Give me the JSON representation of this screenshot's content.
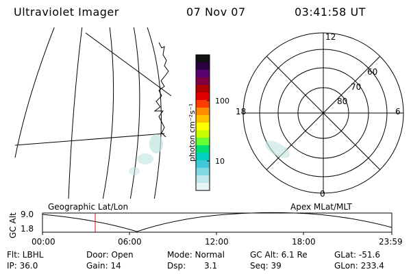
{
  "header": {
    "instrument": "Ultraviolet Imager",
    "date": "07 Nov 07",
    "time": "03:41:58 UT"
  },
  "colorbar": {
    "unit_label": "photon cm⁻²s⁻¹",
    "tick_labels": [
      "100",
      "10"
    ],
    "colors": [
      "#111111",
      "#2a0040",
      "#5a0070",
      "#800040",
      "#b00000",
      "#e00000",
      "#ff3b00",
      "#ff8c00",
      "#ffc000",
      "#ffff00",
      "#c8ff00",
      "#66ff33",
      "#00e070",
      "#00d0c0",
      "#40c8d8",
      "#80d8e0",
      "#c0e8ec",
      "#e8f4f4"
    ]
  },
  "polar_plot": {
    "mlt_labels": [
      "12",
      "6",
      "0",
      "18"
    ],
    "lat_labels": [
      "60",
      "70",
      "80"
    ]
  },
  "timeline": {
    "axis_label": "GC Alt",
    "y_max": "9.0",
    "y_min": "1.8",
    "left_title": "Geographic Lat/Lon",
    "right_title": "Apex MLat/MLT",
    "ticks": [
      "00:00",
      "06:00",
      "12:00",
      "18:00",
      "23:59"
    ],
    "marker_color": "#e00000"
  },
  "footer": {
    "flt": "Flt: LBHL",
    "ip": "IP: 36.0",
    "door": "Door: Open",
    "gain": "Gain: 14",
    "mode": "Mode: Normal",
    "dsp": "Dsp:",
    "dsp_value": "3.1",
    "gc_alt": "GC Alt: 6.1 Re",
    "seq": "Seq: 39",
    "glat": "GLat: -51.6",
    "glon": "GLon: 233.4"
  }
}
